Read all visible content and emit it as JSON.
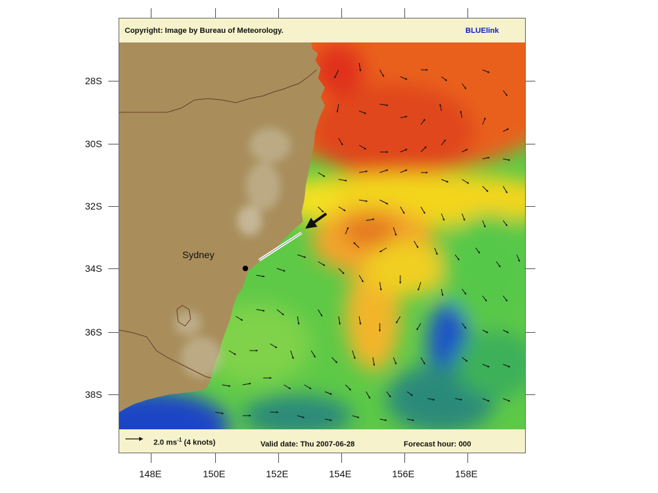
{
  "header": {
    "copyright": "Copyright: Image by Bureau of Meteorology.",
    "brand": "BLUElink"
  },
  "footer": {
    "scale_prefix": "2.0 ms",
    "scale_exp": "-1",
    "scale_suffix": " (4 knots)",
    "valid_date": "Valid date: Thu 2007-06-28",
    "forecast_hour": "Forecast hour: 000"
  },
  "axes": {
    "lat_labels": [
      "28S",
      "30S",
      "32S",
      "34S",
      "36S",
      "38S"
    ],
    "lon_labels": [
      "148E",
      "150E",
      "152E",
      "154E",
      "156E",
      "158E"
    ]
  },
  "places": {
    "city": "Sydney"
  },
  "colors": {
    "land": "#a98e5c",
    "warm": "#e8531d",
    "mid": "#f3d51e",
    "cool": "#3ec047",
    "cold": "#1f52c8",
    "brand": "#1020c8"
  }
}
